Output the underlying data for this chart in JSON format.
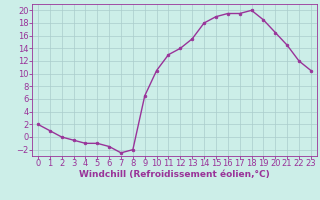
{
  "x": [
    0,
    1,
    2,
    3,
    4,
    5,
    6,
    7,
    8,
    9,
    10,
    11,
    12,
    13,
    14,
    15,
    16,
    17,
    18,
    19,
    20,
    21,
    22,
    23
  ],
  "y": [
    2,
    1,
    0,
    -0.5,
    -1,
    -1,
    -1.5,
    -2.5,
    -2,
    6.5,
    10.5,
    13,
    14,
    15.5,
    18,
    19,
    19.5,
    19.5,
    20,
    18.5,
    16.5,
    14.5,
    12,
    10.5
  ],
  "line_color": "#993399",
  "marker": "o",
  "marker_size": 2.0,
  "background_color": "#cceee8",
  "grid_color": "#aacccc",
  "xlabel": "Windchill (Refroidissement éolien,°C)",
  "xlim": [
    -0.5,
    23.5
  ],
  "ylim": [
    -3,
    21
  ],
  "yticks": [
    -2,
    0,
    2,
    4,
    6,
    8,
    10,
    12,
    14,
    16,
    18,
    20
  ],
  "xticks": [
    0,
    1,
    2,
    3,
    4,
    5,
    6,
    7,
    8,
    9,
    10,
    11,
    12,
    13,
    14,
    15,
    16,
    17,
    18,
    19,
    20,
    21,
    22,
    23
  ],
  "tick_color": "#993399",
  "label_color": "#993399",
  "xlabel_fontsize": 6.5,
  "tick_fontsize": 6.0,
  "linewidth": 1.0
}
